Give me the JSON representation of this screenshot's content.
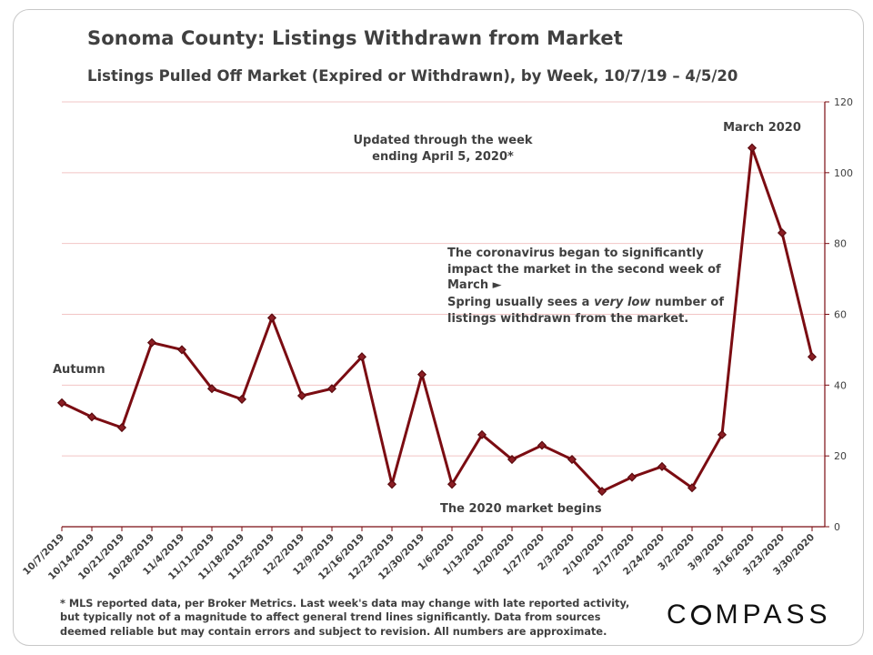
{
  "title": "Sonoma County: Listings Withdrawn from Market",
  "subtitle": "Listings Pulled Off Market (Expired or Withdrawn), by Week, 10/7/19 – 4/5/20",
  "colors": {
    "line": "#7b0c12",
    "marker_fill": "#8b1e24",
    "grid": "#f2c4c4",
    "axis": "#7b0c12",
    "text": "#404040"
  },
  "annotations": {
    "updated": "Updated through the week ending April 5, 2020*",
    "march": "March 2020",
    "autumn": "Autumn",
    "begins": "The 2020 market begins",
    "corona": "The coronavirus began to significantly impact the market in the second week of March ►",
    "spring_pre": "Spring usually sees a ",
    "spring_em": "very low",
    "spring_post": " number of listings withdrawn from the market."
  },
  "footnote": "* MLS reported data, per Broker Metrics. Last week's data may change with late reported activity, but typically not of a magnitude to affect general trend lines significantly. Data from sources deemed reliable but may contain errors and subject to revision. All numbers are approximate.",
  "logo": {
    "before": "C",
    "after": "MPASS",
    "icon": "compass-ring-o"
  },
  "chart_data": {
    "type": "line",
    "title": "Sonoma County: Listings Withdrawn from Market",
    "subtitle": "Listings Pulled Off Market (Expired or Withdrawn), by Week, 10/7/19 – 4/5/20",
    "xlabel": "",
    "ylabel": "",
    "ylim": [
      0,
      120
    ],
    "yticks": [
      0,
      20,
      40,
      60,
      80,
      100,
      120
    ],
    "y_axis_side": "right",
    "grid": true,
    "legend": "none",
    "categories": [
      "10/7/2019",
      "10/14/2019",
      "10/21/2019",
      "10/28/2019",
      "11/4/2019",
      "11/11/2019",
      "11/18/2019",
      "11/25/2019",
      "12/2/2019",
      "12/9/2019",
      "12/16/2019",
      "12/23/2019",
      "12/30/2019",
      "1/6/2020",
      "1/13/2020",
      "1/20/2020",
      "1/27/2020",
      "2/3/2020",
      "2/10/2020",
      "2/17/2020",
      "2/24/2020",
      "3/2/2020",
      "3/9/2020",
      "3/16/2020",
      "3/23/2020",
      "3/30/2020"
    ],
    "series": [
      {
        "values": [
          35,
          31,
          28,
          52,
          50,
          39,
          36,
          59,
          37,
          39,
          48,
          12,
          43,
          12,
          26,
          19,
          23,
          19,
          10,
          14,
          17,
          11,
          26,
          107,
          83,
          48
        ]
      }
    ]
  }
}
